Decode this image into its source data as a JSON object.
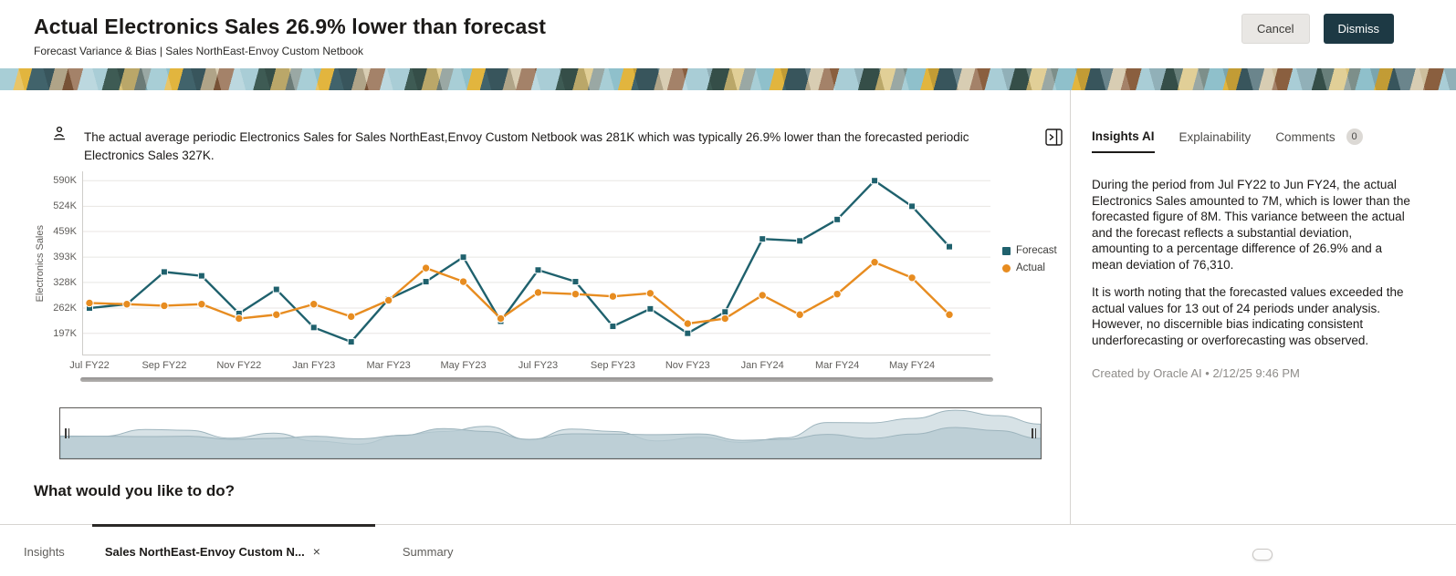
{
  "header": {
    "title": "Actual Electronics Sales 26.9% lower than forecast",
    "subtitle": "Forecast Variance & Bias | Sales NorthEast-Envoy Custom Netbook",
    "cancel_label": "Cancel",
    "dismiss_label": "Dismiss"
  },
  "insight": {
    "summary": "The actual average periodic Electronics Sales for Sales NorthEast,Envoy Custom Netbook was 281K which was typically 26.9% lower than the forecasted periodic Electronics Sales 327K."
  },
  "chart_data": {
    "type": "line",
    "title": "",
    "xlabel": "",
    "ylabel": "Electronics Sales",
    "grid": true,
    "legend_position": "right",
    "ylim": [
      140000,
      614000
    ],
    "y_ticks": [
      "590K",
      "524K",
      "459K",
      "393K",
      "328K",
      "262K",
      "197K"
    ],
    "y_tick_values": [
      590000,
      524000,
      459000,
      393000,
      328000,
      262000,
      197000
    ],
    "x_ticks": [
      "Jul FY22",
      "Sep FY22",
      "Nov FY22",
      "Jan FY23",
      "Mar FY23",
      "May FY23",
      "Jul FY23",
      "Sep FY23",
      "Nov FY23",
      "Jan FY24",
      "Mar FY24",
      "May FY24"
    ],
    "categories": [
      "Jul FY22",
      "Aug FY22",
      "Sep FY22",
      "Oct FY22",
      "Nov FY22",
      "Dec FY22",
      "Jan FY23",
      "Feb FY23",
      "Mar FY23",
      "Apr FY23",
      "May FY23",
      "Jun FY23",
      "Jul FY23",
      "Aug FY23",
      "Sep FY23",
      "Oct FY23",
      "Nov FY23",
      "Dec FY23",
      "Jan FY24",
      "Feb FY24",
      "Mar FY24",
      "Apr FY24",
      "May FY24",
      "Jun FY24"
    ],
    "series": [
      {
        "name": "Forecast",
        "color": "#1f616d",
        "marker": "square",
        "values": [
          262000,
          272000,
          355000,
          345000,
          248000,
          310000,
          212000,
          175000,
          285000,
          330000,
          393000,
          228000,
          360000,
          330000,
          215000,
          260000,
          197000,
          252000,
          440000,
          435000,
          490000,
          590000,
          524000,
          420000
        ]
      },
      {
        "name": "Actual",
        "color": "#e78c20",
        "marker": "circle",
        "values": [
          275000,
          272000,
          268000,
          272000,
          235000,
          245000,
          272000,
          240000,
          282000,
          365000,
          330000,
          235000,
          302000,
          298000,
          292000,
          300000,
          222000,
          235000,
          295000,
          245000,
          298000,
          380000,
          340000,
          245000
        ]
      }
    ],
    "range_selector_fill": "#b7cad2"
  },
  "question": "What would you like to do?",
  "panel": {
    "tabs": [
      {
        "label": "Insights AI",
        "active": true
      },
      {
        "label": "Explainability",
        "active": false
      },
      {
        "label": "Comments",
        "active": false,
        "badge": "0"
      }
    ],
    "paragraph1": "During the period from Jul FY22 to Jun FY24, the actual Electronics Sales amounted to 7M, which is lower than the forecasted figure of 8M. This variance between the actual and the forecast reflects a substantial deviation, amounting to a percentage difference of 26.9% and a mean deviation of 76,310.",
    "paragraph2": "It is worth noting that the forecasted values exceeded the actual values for 13 out of 24 periods under analysis. However, no discernible bias indicating consistent underforecasting or overforecasting was observed.",
    "footer": "Created by Oracle AI • 2/12/25 9:46 PM"
  },
  "bottom_tabs": {
    "items": [
      {
        "label": "Insights",
        "active": false
      },
      {
        "label": "Sales NorthEast-Envoy Custom N...",
        "active": true,
        "close_label": "×"
      },
      {
        "label": "Summary",
        "active": false
      }
    ]
  }
}
